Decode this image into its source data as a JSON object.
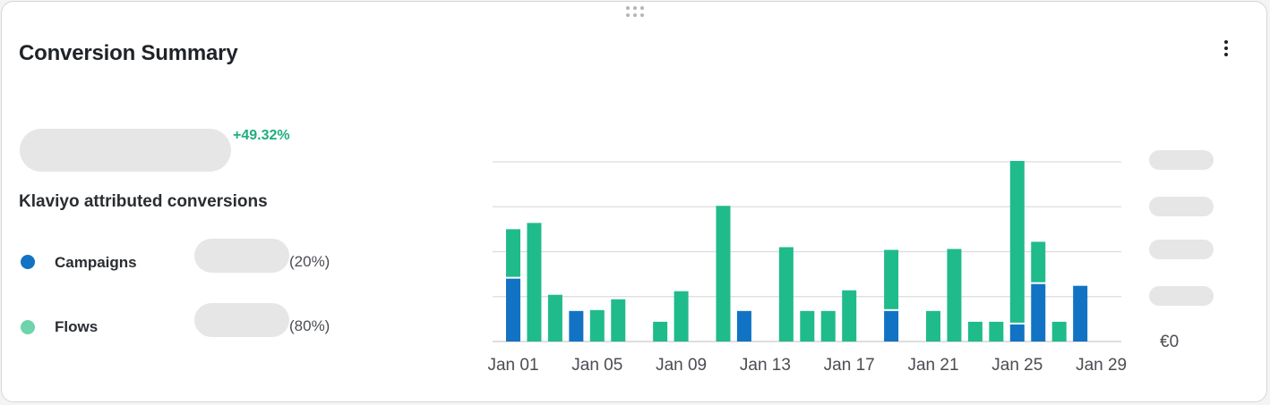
{
  "widget": {
    "title": "Conversion Summary",
    "change": "+49.32%",
    "subtitle": "Klaviyo attributed conversions",
    "menu_icon": "more-vertical-icon",
    "drag_icon": "drag-handle-icon"
  },
  "legend": [
    {
      "label": "Campaigns",
      "pct": "(20%)",
      "color": "#1273c4"
    },
    {
      "label": "Flows",
      "pct": "(80%)",
      "color": "#6fd3ac"
    }
  ],
  "colors": {
    "campaigns_bar": "#1273c4",
    "flows_bar": "#20bb8a",
    "change_positive": "#1fae7e",
    "skeleton": "#e6e6e7"
  },
  "chart_data": {
    "type": "bar",
    "stacked": true,
    "y_axis_label": "€0",
    "x_tick_labels": [
      "Jan 01",
      "Jan 05",
      "Jan 09",
      "Jan 13",
      "Jan 17",
      "Jan 21",
      "Jan 25",
      "Jan 29"
    ],
    "categories": [
      "Jan 01",
      "Jan 02",
      "Jan 03",
      "Jan 04",
      "Jan 05",
      "Jan 06",
      "Jan 07",
      "Jan 08",
      "Jan 09",
      "Jan 10",
      "Jan 11",
      "Jan 12",
      "Jan 13",
      "Jan 14",
      "Jan 15",
      "Jan 16",
      "Jan 17",
      "Jan 18",
      "Jan 19",
      "Jan 20",
      "Jan 21",
      "Jan 22",
      "Jan 23",
      "Jan 24",
      "Jan 25",
      "Jan 26",
      "Jan 27",
      "Jan 28",
      "Jan 29"
    ],
    "series": [
      {
        "name": "Campaigns",
        "values": [
          1.4,
          0,
          0,
          0.68,
          0,
          0,
          0,
          0,
          0,
          0,
          0,
          0.68,
          0,
          0,
          0,
          0,
          0,
          0,
          0.68,
          0,
          0,
          0,
          0,
          0,
          0.38,
          1.28,
          0,
          1.24,
          0
        ]
      },
      {
        "name": "Flows",
        "values": [
          1.1,
          2.64,
          1.04,
          0,
          0.7,
          0.94,
          0,
          0.44,
          1.12,
          0,
          3.02,
          0,
          0,
          2.1,
          0.68,
          0.68,
          1.14,
          0,
          1.36,
          0,
          0.68,
          2.06,
          0.44,
          0.44,
          3.64,
          0.94,
          0.44,
          0,
          0
        ]
      }
    ],
    "ylim": [
      0,
      4
    ],
    "grid": true,
    "y_tick_count": 4
  }
}
